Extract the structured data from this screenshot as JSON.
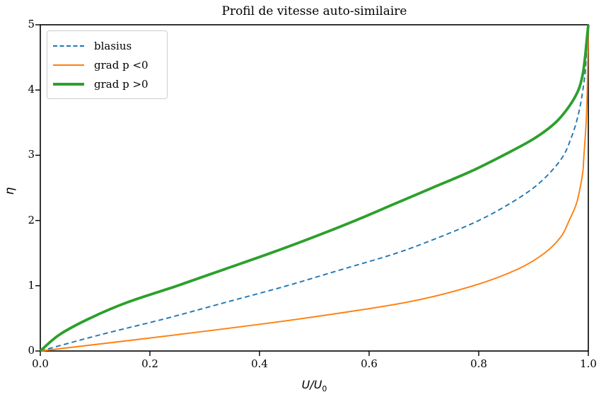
{
  "figure_title": "Profil de vitesse auto-similaire",
  "chart_data": {
    "type": "line",
    "title": "Profil de vitesse auto-similaire",
    "xlabel": "U/U_0",
    "xlabel_base": "U/U",
    "xlabel_sub": "0",
    "ylabel": "η",
    "xlim": [
      0.0,
      1.0
    ],
    "ylim": [
      0,
      5
    ],
    "grid": false,
    "legend_position": "upper left",
    "xticks": {
      "values": [
        0.0,
        0.2,
        0.4,
        0.6,
        0.8,
        1.0
      ],
      "labels": [
        "0.0",
        "0.2",
        "0.4",
        "0.6",
        "0.8",
        "1.0"
      ]
    },
    "yticks": {
      "values": [
        0,
        1,
        2,
        3,
        4,
        5
      ],
      "labels": [
        "0",
        "1",
        "2",
        "3",
        "4",
        "5"
      ]
    },
    "point_format": "[U_over_U0, eta]",
    "series": [
      {
        "name": "blasius",
        "color": "#1f77b4",
        "line_style": "dashed",
        "line_width": 1.9,
        "points": [
          [
            0,
            0
          ],
          [
            0.11,
            0.25
          ],
          [
            0.23,
            0.5
          ],
          [
            0.34,
            0.75
          ],
          [
            0.45,
            1.0
          ],
          [
            0.55,
            1.25
          ],
          [
            0.65,
            1.5
          ],
          [
            0.73,
            1.75
          ],
          [
            0.8,
            2.0
          ],
          [
            0.855,
            2.25
          ],
          [
            0.9,
            2.5
          ],
          [
            0.932,
            2.75
          ],
          [
            0.955,
            3.0
          ],
          [
            0.968,
            3.25
          ],
          [
            0.978,
            3.5
          ],
          [
            0.985,
            3.75
          ],
          [
            0.99,
            4.0
          ],
          [
            0.994,
            4.25
          ],
          [
            0.996,
            4.5
          ],
          [
            0.998,
            4.75
          ],
          [
            1.0,
            5.0
          ]
        ]
      },
      {
        "name": "grad p <0",
        "color": "#ff7f0e",
        "line_style": "solid",
        "line_width": 1.9,
        "points": [
          [
            0,
            0
          ],
          [
            0.25,
            0.25
          ],
          [
            0.48,
            0.5
          ],
          [
            0.67,
            0.75
          ],
          [
            0.79,
            1.0
          ],
          [
            0.87,
            1.25
          ],
          [
            0.92,
            1.5
          ],
          [
            0.95,
            1.75
          ],
          [
            0.965,
            2.0
          ],
          [
            0.978,
            2.25
          ],
          [
            0.985,
            2.5
          ],
          [
            0.99,
            2.75
          ],
          [
            0.992,
            3.0
          ],
          [
            0.996,
            3.5
          ],
          [
            0.998,
            4.0
          ],
          [
            0.999,
            4.5
          ],
          [
            1.0,
            5.0
          ]
        ]
      },
      {
        "name": "grad p >0",
        "color": "#2ca02c",
        "line_style": "solid",
        "line_width": 3.8,
        "points": [
          [
            0,
            0
          ],
          [
            0.035,
            0.25
          ],
          [
            0.09,
            0.5
          ],
          [
            0.16,
            0.75
          ],
          [
            0.25,
            1.0
          ],
          [
            0.335,
            1.25
          ],
          [
            0.42,
            1.5
          ],
          [
            0.5,
            1.75
          ],
          [
            0.575,
            2.0
          ],
          [
            0.645,
            2.25
          ],
          [
            0.715,
            2.5
          ],
          [
            0.785,
            2.75
          ],
          [
            0.845,
            3.0
          ],
          [
            0.9,
            3.25
          ],
          [
            0.94,
            3.5
          ],
          [
            0.965,
            3.75
          ],
          [
            0.982,
            4.0
          ],
          [
            0.99,
            4.25
          ],
          [
            0.994,
            4.5
          ],
          [
            0.997,
            4.75
          ],
          [
            1.0,
            5.0
          ]
        ]
      }
    ]
  }
}
